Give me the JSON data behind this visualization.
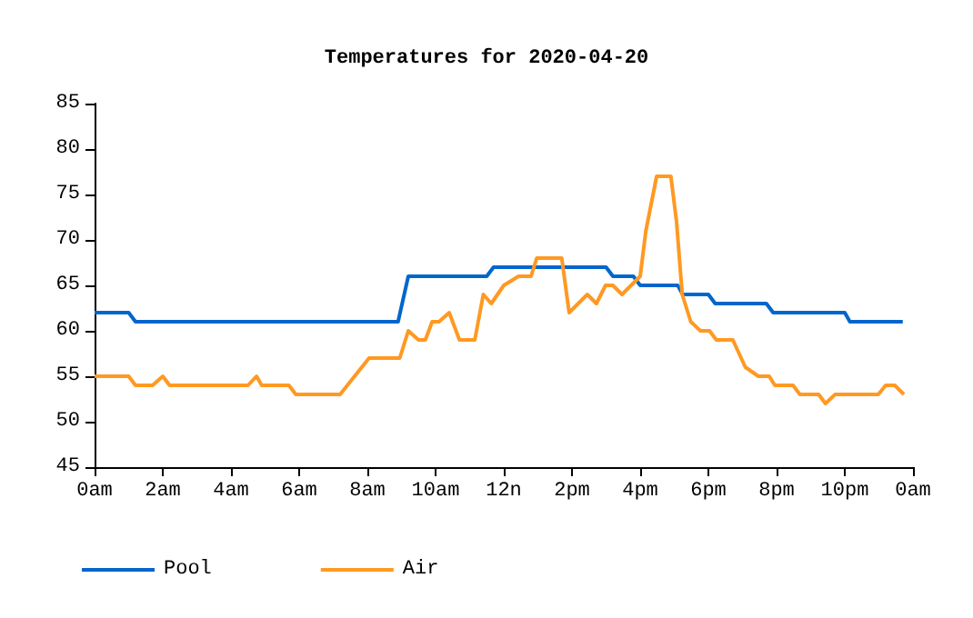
{
  "chart_data": {
    "type": "line",
    "title": "Temperatures for 2020-04-20",
    "xlim": [
      "2020-04-20T00:00",
      "2020-04-21T00:00"
    ],
    "xticks": [
      {
        "value": "2020-04-20T00:00",
        "label": "0am"
      },
      {
        "value": "2020-04-20T02:00",
        "label": "2am"
      },
      {
        "value": "2020-04-20T04:00",
        "label": "4am"
      },
      {
        "value": "2020-04-20T06:00",
        "label": "6am"
      },
      {
        "value": "2020-04-20T08:00",
        "label": "8am"
      },
      {
        "value": "2020-04-20T10:00",
        "label": "10am"
      },
      {
        "value": "2020-04-20T12:00",
        "label": "12n"
      },
      {
        "value": "2020-04-20T14:00",
        "label": "2pm"
      },
      {
        "value": "2020-04-20T16:00",
        "label": "4pm"
      },
      {
        "value": "2020-04-20T18:00",
        "label": "6pm"
      },
      {
        "value": "2020-04-20T20:00",
        "label": "8pm"
      },
      {
        "value": "2020-04-20T22:00",
        "label": "10pm"
      },
      {
        "value": "2020-04-21T00:00",
        "label": "0am"
      }
    ],
    "ylim": [
      45,
      85
    ],
    "yticks": [
      45,
      50,
      55,
      60,
      65,
      70,
      75,
      80,
      85
    ],
    "grid": false,
    "legend": "bottom left",
    "marker": "none",
    "line_style": "solid",
    "series": [
      {
        "name": "Pool",
        "color": "#0066cc",
        "x": [
          "2020-04-20T00:00",
          "2020-04-20T01:00",
          "2020-04-20T01:12",
          "2020-04-20T08:54",
          "2020-04-20T09:12",
          "2020-04-20T11:30",
          "2020-04-20T11:42",
          "2020-04-20T15:00",
          "2020-04-20T15:12",
          "2020-04-20T15:48",
          "2020-04-20T16:00",
          "2020-04-20T17:06",
          "2020-04-20T17:15",
          "2020-04-20T18:00",
          "2020-04-20T18:12",
          "2020-04-20T19:42",
          "2020-04-20T19:54",
          "2020-04-20T22:00",
          "2020-04-20T22:09",
          "2020-04-20T23:42"
        ],
        "values": [
          62,
          62,
          61,
          61,
          66,
          66,
          67,
          67,
          66,
          66,
          65,
          65,
          64,
          64,
          63,
          63,
          62,
          62,
          61,
          61
        ]
      },
      {
        "name": "Air",
        "color": "#ff9922",
        "x": [
          "2020-04-20T00:00",
          "2020-04-20T01:00",
          "2020-04-20T01:12",
          "2020-04-20T01:42",
          "2020-04-20T02:00",
          "2020-04-20T02:12",
          "2020-04-20T04:30",
          "2020-04-20T04:45",
          "2020-04-20T04:54",
          "2020-04-20T05:42",
          "2020-04-20T05:54",
          "2020-04-20T07:12",
          "2020-04-20T08:03",
          "2020-04-20T08:57",
          "2020-04-20T09:12",
          "2020-04-20T09:30",
          "2020-04-20T09:42",
          "2020-04-20T09:54",
          "2020-04-20T10:06",
          "2020-04-20T10:24",
          "2020-04-20T10:42",
          "2020-04-20T11:09",
          "2020-04-20T11:24",
          "2020-04-20T11:38",
          "2020-04-20T12:00",
          "2020-04-20T12:26",
          "2020-04-20T12:48",
          "2020-04-20T12:58",
          "2020-04-20T13:42",
          "2020-04-20T13:55",
          "2020-04-20T14:11",
          "2020-04-20T14:27",
          "2020-04-20T14:43",
          "2020-04-20T14:59",
          "2020-04-20T15:12",
          "2020-04-20T15:28",
          "2020-04-20T16:00",
          "2020-04-20T16:10",
          "2020-04-20T16:29",
          "2020-04-20T16:54",
          "2020-04-20T17:04",
          "2020-04-20T17:14",
          "2020-04-20T17:29",
          "2020-04-20T17:46",
          "2020-04-20T18:02",
          "2020-04-20T18:14",
          "2020-04-20T18:43",
          "2020-04-20T19:05",
          "2020-04-20T19:28",
          "2020-04-20T19:47",
          "2020-04-20T19:57",
          "2020-04-20T20:29",
          "2020-04-20T20:41",
          "2020-04-20T21:14",
          "2020-04-20T21:26",
          "2020-04-20T21:43",
          "2020-04-20T22:59",
          "2020-04-20T23:12",
          "2020-04-20T23:28",
          "2020-04-20T23:44"
        ],
        "values": [
          55,
          55,
          54,
          54,
          55,
          54,
          54,
          55,
          54,
          54,
          53,
          53,
          57,
          57,
          60,
          59,
          59,
          61,
          61,
          62,
          59,
          59,
          64,
          63,
          65,
          66,
          66,
          68,
          68,
          62,
          63,
          64,
          63,
          65,
          65,
          64,
          66,
          71,
          77,
          77,
          72,
          64,
          61,
          60,
          60,
          59,
          59,
          56,
          55,
          55,
          54,
          54,
          53,
          53,
          52,
          53,
          53,
          54,
          54,
          53
        ]
      }
    ]
  }
}
